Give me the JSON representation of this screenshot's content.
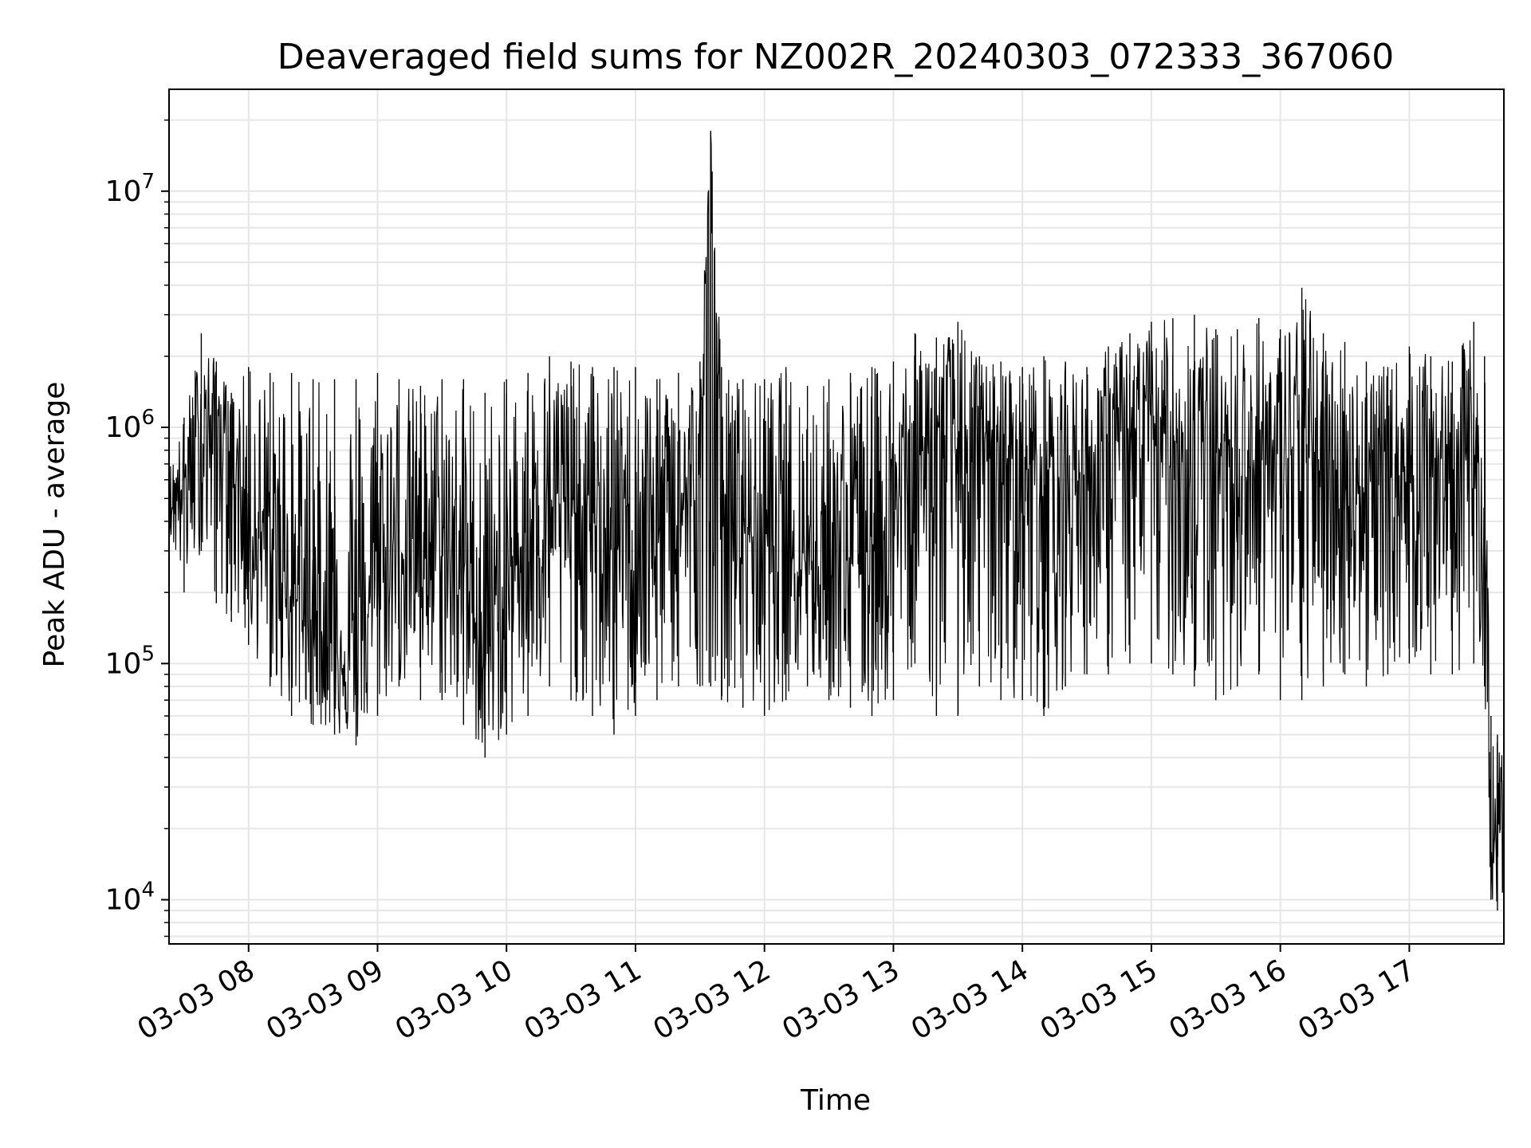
{
  "chart_data": {
    "type": "line",
    "title": "Deaveraged field sums for NZ002R_20240303_072333_367060",
    "xlabel": "Time",
    "ylabel": "Peak ADU - average",
    "yscale": "log",
    "grid": true,
    "line_color": "#000000",
    "grid_color": "#e6e6e6",
    "xlim": [
      "2024-03-03 07:23",
      "2024-03-03 17:44"
    ],
    "ylim": [
      6500,
      27000000
    ],
    "y_ticks": [
      {
        "value": 10000,
        "base": "10",
        "exp": "4"
      },
      {
        "value": 100000,
        "base": "10",
        "exp": "5"
      },
      {
        "value": 1000000,
        "base": "10",
        "exp": "6"
      },
      {
        "value": 10000000,
        "base": "10",
        "exp": "7"
      }
    ],
    "x_ticks": [
      {
        "value": "2024-03-03 08:00",
        "label": "03-03 08"
      },
      {
        "value": "2024-03-03 09:00",
        "label": "03-03 09"
      },
      {
        "value": "2024-03-03 10:00",
        "label": "03-03 10"
      },
      {
        "value": "2024-03-03 11:00",
        "label": "03-03 11"
      },
      {
        "value": "2024-03-03 12:00",
        "label": "03-03 12"
      },
      {
        "value": "2024-03-03 13:00",
        "label": "03-03 13"
      },
      {
        "value": "2024-03-03 14:00",
        "label": "03-03 14"
      },
      {
        "value": "2024-03-03 15:00",
        "label": "03-03 15"
      },
      {
        "value": "2024-03-03 16:00",
        "label": "03-03 16"
      },
      {
        "value": "2024-03-03 17:00",
        "label": "03-03 17"
      }
    ],
    "series": [
      {
        "x": [
          "2024-03-03 07:23",
          "2024-03-03 07:30",
          "2024-03-03 07:38",
          "2024-03-03 07:45",
          "2024-03-03 07:52",
          "2024-03-03 08:00",
          "2024-03-03 08:10",
          "2024-03-03 08:20",
          "2024-03-03 08:30",
          "2024-03-03 08:40",
          "2024-03-03 08:50",
          "2024-03-03 09:00",
          "2024-03-03 09:10",
          "2024-03-03 09:20",
          "2024-03-03 09:30",
          "2024-03-03 09:40",
          "2024-03-03 09:50",
          "2024-03-03 10:00",
          "2024-03-03 10:10",
          "2024-03-03 10:20",
          "2024-03-03 10:30",
          "2024-03-03 10:40",
          "2024-03-03 10:50",
          "2024-03-03 11:00",
          "2024-03-03 11:10",
          "2024-03-03 11:20",
          "2024-03-03 11:30",
          "2024-03-03 11:35",
          "2024-03-03 11:40",
          "2024-03-03 11:50",
          "2024-03-03 12:00",
          "2024-03-03 12:10",
          "2024-03-03 12:20",
          "2024-03-03 12:30",
          "2024-03-03 12:40",
          "2024-03-03 12:50",
          "2024-03-03 13:00",
          "2024-03-03 13:10",
          "2024-03-03 13:20",
          "2024-03-03 13:30",
          "2024-03-03 13:40",
          "2024-03-03 13:50",
          "2024-03-03 14:00",
          "2024-03-03 14:10",
          "2024-03-03 14:20",
          "2024-03-03 14:30",
          "2024-03-03 14:40",
          "2024-03-03 14:50",
          "2024-03-03 15:00",
          "2024-03-03 15:10",
          "2024-03-03 15:20",
          "2024-03-03 15:30",
          "2024-03-03 15:40",
          "2024-03-03 15:50",
          "2024-03-03 16:00",
          "2024-03-03 16:10",
          "2024-03-03 16:20",
          "2024-03-03 16:30",
          "2024-03-03 16:40",
          "2024-03-03 16:50",
          "2024-03-03 17:00",
          "2024-03-03 17:10",
          "2024-03-03 17:20",
          "2024-03-03 17:30",
          "2024-03-03 17:35",
          "2024-03-03 17:38",
          "2024-03-03 17:41",
          "2024-03-03 17:44"
        ],
        "y": [
          450000,
          600000,
          900000,
          1200000,
          800000,
          400000,
          300000,
          200000,
          150000,
          120000,
          100000,
          250000,
          300000,
          350000,
          300000,
          250000,
          100000,
          200000,
          400000,
          500000,
          450000,
          400000,
          300000,
          350000,
          450000,
          500000,
          500000,
          18000000,
          500000,
          400000,
          350000,
          400000,
          300000,
          250000,
          300000,
          350000,
          400000,
          800000,
          900000,
          800000,
          700000,
          750000,
          700000,
          650000,
          600000,
          650000,
          800000,
          900000,
          1000000,
          900000,
          850000,
          800000,
          750000,
          700000,
          750000,
          800000,
          700000,
          600000,
          550000,
          600000,
          650000,
          700000,
          750000,
          800000,
          300000,
          20000,
          15000,
          30000
        ],
        "min_envelope": [
          350000,
          200000,
          300000,
          180000,
          150000,
          120000,
          80000,
          60000,
          55000,
          50000,
          45000,
          60000,
          80000,
          70000,
          70000,
          55000,
          40000,
          50000,
          60000,
          80000,
          70000,
          60000,
          50000,
          60000,
          70000,
          80000,
          80000,
          80000,
          70000,
          65000,
          60000,
          70000,
          80000,
          70000,
          65000,
          60000,
          70000,
          100000,
          60000,
          60000,
          80000,
          70000,
          70000,
          60000,
          80000,
          90000,
          90000,
          100000,
          100000,
          90000,
          80000,
          70000,
          80000,
          90000,
          70000,
          70000,
          80000,
          90000,
          80000,
          90000,
          100000,
          90000,
          90000,
          100000,
          80000,
          10000,
          9000,
          10000
        ],
        "max_envelope": [
          700000,
          1100000,
          2500000,
          1900000,
          1400000,
          1800000,
          1700000,
          1700000,
          1600000,
          1600000,
          1600000,
          1700000,
          1600000,
          1500000,
          1600000,
          1600000,
          1400000,
          1600000,
          1700000,
          2000000,
          1900000,
          1800000,
          1800000,
          1800000,
          1600000,
          1700000,
          1900000,
          18000000,
          1800000,
          1600000,
          1600000,
          1800000,
          1500000,
          1600000,
          1700000,
          1800000,
          1900000,
          2500000,
          2400000,
          2800000,
          2000000,
          1900000,
          1800000,
          2000000,
          1900000,
          1800000,
          2200000,
          2500000,
          2800000,
          2900000,
          3000000,
          2600000,
          2600000,
          2900000,
          2600000,
          3900000,
          2500000,
          2300000,
          1900000,
          1800000,
          2200000,
          2000000,
          1900000,
          2800000,
          2000000,
          60000,
          50000,
          60000
        ]
      }
    ]
  }
}
